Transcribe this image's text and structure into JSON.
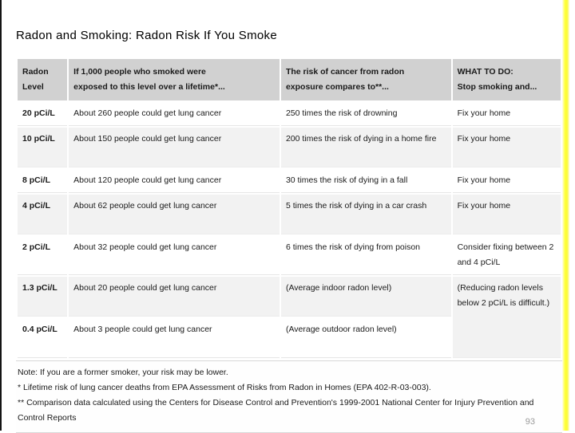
{
  "slide": {
    "title": "Radon and Smoking: Radon Risk If You Smoke",
    "page_number": "93",
    "accent_color": "#ffff2e"
  },
  "table": {
    "columns": [
      {
        "line1": "Radon",
        "line2": "Level"
      },
      {
        "line1": "If 1,000 people who smoked were",
        "line2": "exposed to this level over a lifetime*..."
      },
      {
        "line1": "The risk of cancer from radon",
        "line2": "exposure compares to**..."
      },
      {
        "line1": "WHAT TO DO:",
        "line2": "Stop smoking and..."
      }
    ],
    "rows": [
      {
        "level": "20 pCi/L",
        "smokers": "About 260 people could get lung cancer",
        "comparison": "250 times the risk of drowning",
        "action": "Fix your home"
      },
      {
        "level": "10 pCi/L",
        "smokers": "About 150 people could get lung cancer",
        "comparison": "200 times the risk of dying in a home fire",
        "action": "Fix your home"
      },
      {
        "level": "8 pCi/L",
        "smokers": "About 120 people could get lung cancer",
        "comparison": "30 times the risk of dying in a fall",
        "action": "Fix your home"
      },
      {
        "level": "4 pCi/L",
        "smokers": "About 62 people could get lung cancer",
        "comparison": "5 times the risk of dying in a car crash",
        "action": "Fix your home"
      },
      {
        "level": "2 pCi/L",
        "smokers": "About 32 people could get lung cancer",
        "comparison": "6 times the risk of dying from poison",
        "action": "Consider fixing between 2 and 4 pCi/L"
      },
      {
        "level": "1.3 pCi/L",
        "smokers": "About 20 people could get lung cancer",
        "comparison": "(Average indoor radon level)",
        "action": "(Reducing radon levels below 2 pCi/L is difficult.)"
      },
      {
        "level": "0.4 pCi/L",
        "smokers": "About 3 people could get lung cancer",
        "comparison": "(Average outdoor radon level)",
        "action": ""
      }
    ],
    "notes": [
      "Note: If you are a former smoker, your risk may be lower.",
      "* Lifetime risk of lung cancer deaths from EPA Assessment of Risks from Radon in Homes (EPA 402-R-03-003).",
      "** Comparison data calculated using the Centers for Disease Control and Prevention's 1999-2001 National Center for Injury Prevention and Control Reports"
    ]
  }
}
